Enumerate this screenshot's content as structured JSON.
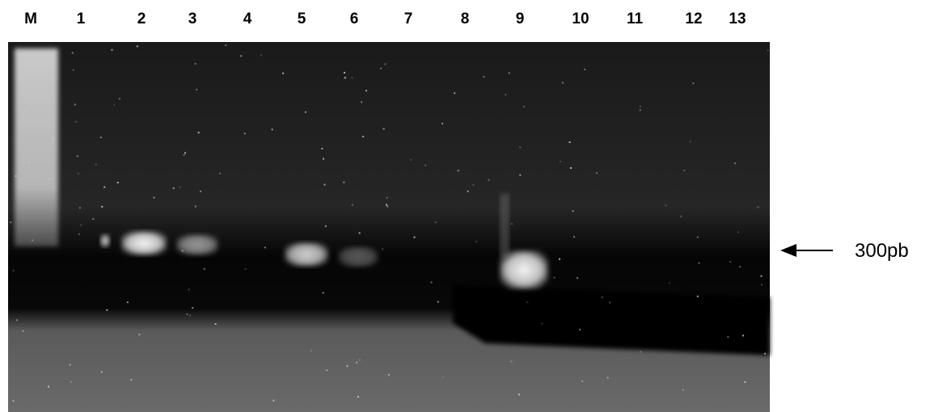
{
  "lanes": [
    "M",
    "1",
    "2",
    "3",
    "4",
    "5",
    "6",
    "7",
    "8",
    "9",
    "10",
    "11",
    "12",
    "13"
  ],
  "marker": {
    "label": "300pb"
  }
}
